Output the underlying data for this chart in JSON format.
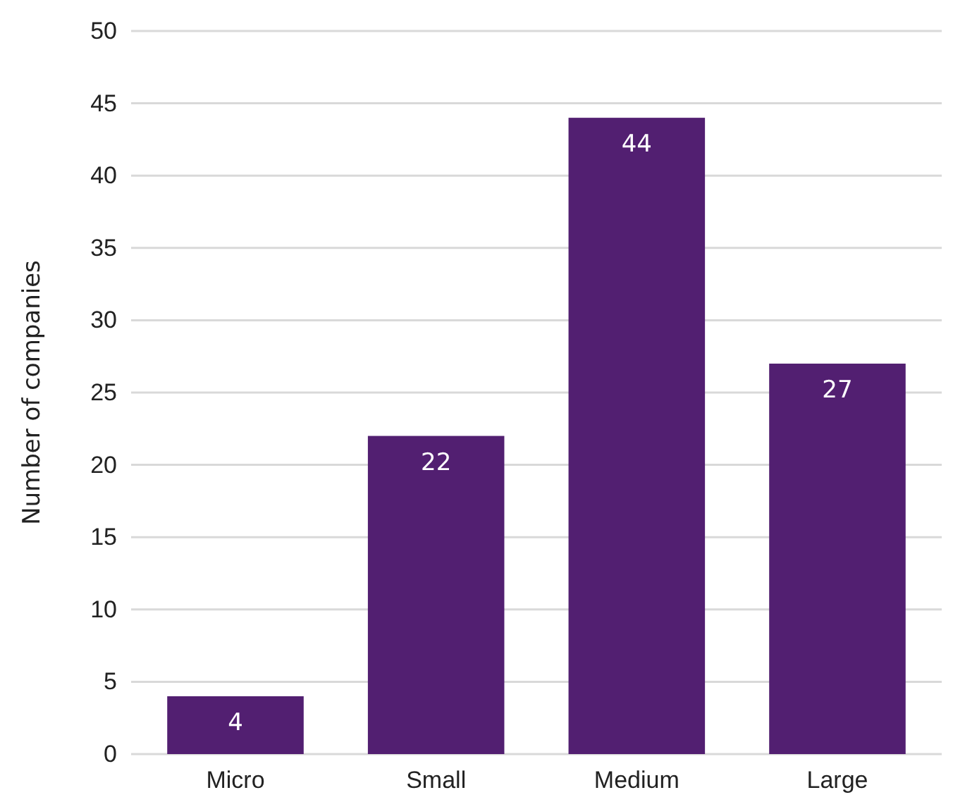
{
  "chart_data": {
    "type": "bar",
    "ylabel": "Number of companies",
    "categories": [
      "Micro",
      "Small",
      "Medium",
      "Large"
    ],
    "values": [
      4,
      22,
      44,
      27
    ],
    "color": "#521f71",
    "ylim": [
      0,
      50
    ],
    "yticks": [
      0,
      5,
      10,
      15,
      20,
      25,
      30,
      35,
      40,
      45,
      50
    ],
    "grid": "y",
    "data_labels": true
  }
}
